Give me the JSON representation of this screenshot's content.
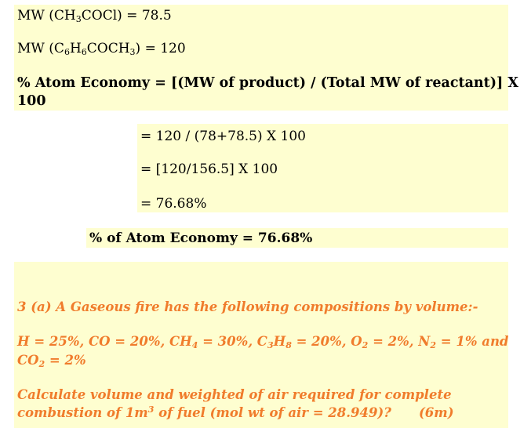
{
  "mw1": {
    "prefix": "MW (CH",
    "s1": "3",
    "mid": "COCl) = 78.5"
  },
  "mw2": {
    "a": "MW (C",
    "s1": "6",
    "b": "H",
    "s2": "6",
    "c": "COCH",
    "s3": "3",
    "d": ") = 120"
  },
  "atom_econ_formula": {
    "line1": "% Atom Economy = [(MW of product) / (Total MW of reactant)] X",
    "line2": "100"
  },
  "calc_steps": [
    "= 120 / (78+78.5) X 100",
    "= [120/156.5] X 100",
    "= 76.68%"
  ],
  "result": "% of Atom Economy = 76.68%",
  "question": {
    "title": "3 (a) A Gaseous fire has the following compositions by volume:-",
    "comp_line1": {
      "p1": "H = 25%, CO = 20%, CH",
      "s1": "4",
      "p2": " = 30%, C",
      "s2": "3",
      "p3": "H",
      "s3": "8",
      "p4": " = 20%, O",
      "s4": "2",
      "p5": " = 2%, N",
      "s5": "2",
      "p6": " = 1% and"
    },
    "comp_line2": {
      "p1": "CO",
      "s1": "2",
      "p2": " = 2%"
    },
    "calc_line1": "Calculate volume and weighted of air required for complete",
    "calc_line2": {
      "p1": "combustion of 1m",
      "sup": "3",
      "p2": " of fuel (mol wt of air = 28.949)?",
      "marks": "(6m)"
    }
  },
  "colors": {
    "highlight": "#fefed0",
    "question_text": "#f07c2c"
  }
}
